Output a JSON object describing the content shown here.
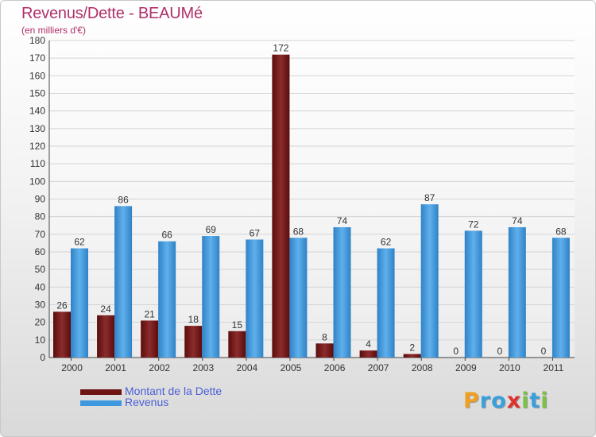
{
  "header": {
    "title": "Revenus/Dette - BEAUMé",
    "subtitle": "(en milliers d'€)"
  },
  "chart_data": {
    "type": "bar",
    "categories": [
      "2000",
      "2001",
      "2002",
      "2003",
      "2004",
      "2005",
      "2006",
      "2007",
      "2008",
      "2009",
      "2010",
      "2011"
    ],
    "series": [
      {
        "name": "Montant de la Dette",
        "color": "#7a1c1c",
        "values": [
          26,
          24,
          21,
          18,
          15,
          172,
          8,
          4,
          2,
          0,
          0,
          0
        ]
      },
      {
        "name": "Revenus",
        "color": "#3d98dd",
        "values": [
          62,
          86,
          66,
          69,
          67,
          68,
          74,
          62,
          87,
          72,
          74,
          68
        ]
      }
    ],
    "ylim": [
      0,
      180
    ],
    "yticks": [
      0,
      10,
      20,
      30,
      40,
      50,
      60,
      70,
      80,
      90,
      100,
      110,
      120,
      130,
      140,
      150,
      160,
      170,
      180
    ],
    "grid": true,
    "legend_position": "bottom-left"
  },
  "legend": {
    "items": [
      {
        "label": "Montant de la Dette",
        "color": "#6e1414"
      },
      {
        "label": "Revenus",
        "color": "#3d98dd"
      }
    ]
  },
  "logo": {
    "letters": [
      {
        "ch": "P",
        "color": "#f0a020"
      },
      {
        "ch": "r",
        "color": "#3aa0dc"
      },
      {
        "ch": "o",
        "color": "#3aa0dc"
      },
      {
        "ch": "x",
        "color": "#e0302e"
      },
      {
        "ch": "i",
        "color": "#7cc242"
      },
      {
        "ch": "t",
        "color": "#3aa0dc"
      },
      {
        "ch": "i",
        "color": "#7cc242"
      }
    ]
  }
}
